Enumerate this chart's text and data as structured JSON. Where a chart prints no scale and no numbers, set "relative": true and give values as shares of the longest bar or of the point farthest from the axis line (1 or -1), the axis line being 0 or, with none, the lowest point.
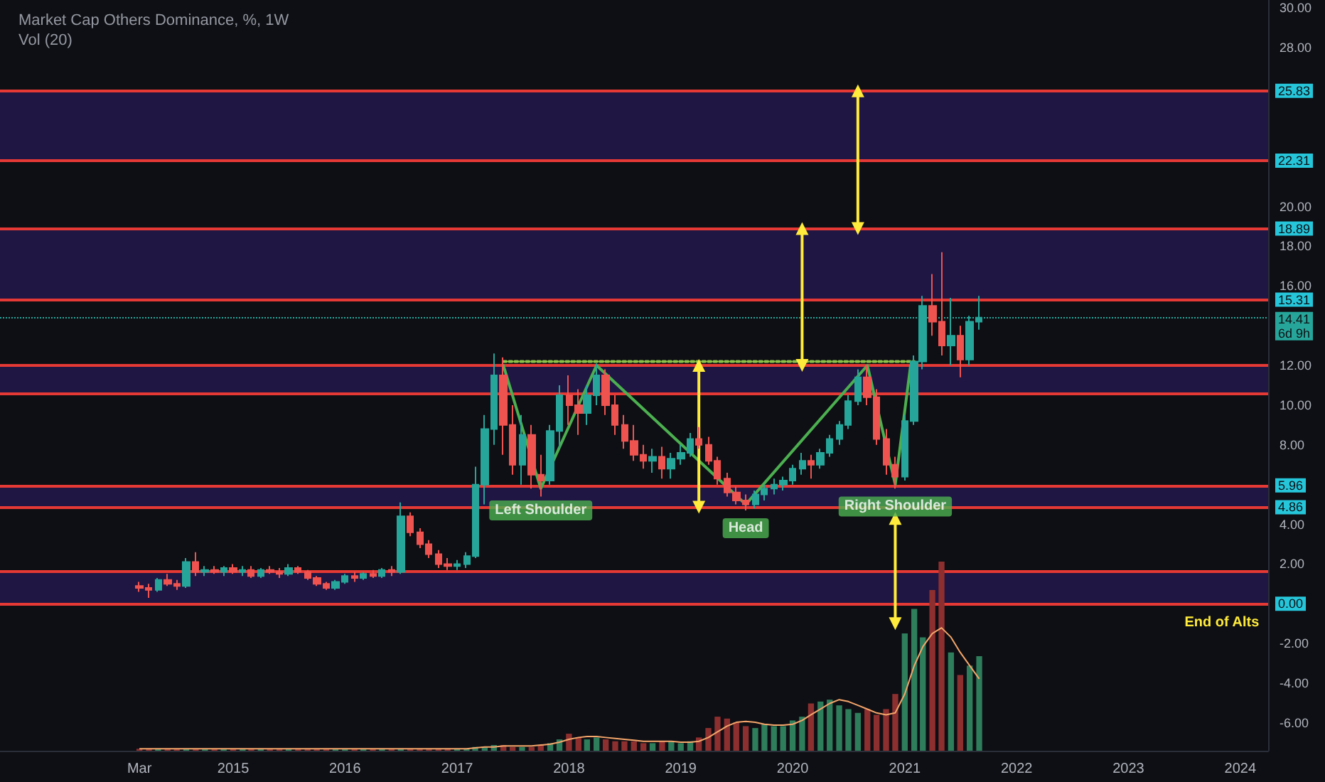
{
  "chart_data": [
    {
      "type": "candlestick",
      "title": "Market Cap Others Dominance, %, 1W",
      "x": [
        "2014-03",
        "2014-04",
        "2014-05",
        "2014-06",
        "2014-07",
        "2014-08",
        "2014-09",
        "2014-10",
        "2014-11",
        "2014-12",
        "2015-01",
        "2015-02",
        "2015-03",
        "2015-04",
        "2015-05",
        "2015-06",
        "2015-07",
        "2015-08",
        "2015-09",
        "2015-10",
        "2015-11",
        "2015-12",
        "2016-01",
        "2016-02",
        "2016-03",
        "2016-04",
        "2016-05",
        "2016-06",
        "2016-07",
        "2016-08",
        "2016-09",
        "2016-10",
        "2016-11",
        "2016-12",
        "2017-01",
        "2017-02",
        "2017-03",
        "2017-04",
        "2017-05",
        "2017-06",
        "2017-07",
        "2017-08",
        "2017-09",
        "2017-10",
        "2017-11",
        "2017-12",
        "2018-01",
        "2018-02",
        "2018-03",
        "2018-04",
        "2018-05",
        "2018-06",
        "2018-07",
        "2018-08",
        "2018-09",
        "2018-10",
        "2018-11",
        "2018-12",
        "2019-01",
        "2019-02",
        "2019-03",
        "2019-04",
        "2019-05",
        "2019-06",
        "2019-07",
        "2019-08",
        "2019-09",
        "2019-10",
        "2019-11",
        "2019-12",
        "2020-01",
        "2020-02",
        "2020-03",
        "2020-04",
        "2020-05",
        "2020-06",
        "2020-07",
        "2020-08",
        "2020-09",
        "2020-10",
        "2020-11",
        "2020-12",
        "2021-01",
        "2021-02",
        "2021-03",
        "2021-04",
        "2021-05",
        "2021-06",
        "2021-07",
        "2021-08",
        "2021-09"
      ],
      "ohlc": [
        [
          0.9,
          1.1,
          0.6,
          0.8
        ],
        [
          0.8,
          1.0,
          0.3,
          0.7
        ],
        [
          0.7,
          1.3,
          0.6,
          1.2
        ],
        [
          1.2,
          1.5,
          0.9,
          1.0
        ],
        [
          1.0,
          1.2,
          0.7,
          0.9
        ],
        [
          0.9,
          2.3,
          0.8,
          2.1
        ],
        [
          2.1,
          2.6,
          1.4,
          1.6
        ],
        [
          1.6,
          1.9,
          1.4,
          1.7
        ],
        [
          1.7,
          1.9,
          1.5,
          1.6
        ],
        [
          1.6,
          1.9,
          1.4,
          1.8
        ],
        [
          1.8,
          2.0,
          1.5,
          1.6
        ],
        [
          1.6,
          1.9,
          1.4,
          1.7
        ],
        [
          1.7,
          1.9,
          1.3,
          1.4
        ],
        [
          1.4,
          1.8,
          1.3,
          1.7
        ],
        [
          1.7,
          1.9,
          1.5,
          1.6
        ],
        [
          1.6,
          1.8,
          1.3,
          1.5
        ],
        [
          1.5,
          2.0,
          1.4,
          1.8
        ],
        [
          1.8,
          1.9,
          1.5,
          1.6
        ],
        [
          1.6,
          1.7,
          1.2,
          1.3
        ],
        [
          1.3,
          1.4,
          0.9,
          1.0
        ],
        [
          1.0,
          1.1,
          0.7,
          0.8
        ],
        [
          0.8,
          1.2,
          0.7,
          1.1
        ],
        [
          1.1,
          1.5,
          1.0,
          1.4
        ],
        [
          1.4,
          1.6,
          1.1,
          1.3
        ],
        [
          1.3,
          1.6,
          1.2,
          1.5
        ],
        [
          1.5,
          1.7,
          1.3,
          1.4
        ],
        [
          1.4,
          1.8,
          1.3,
          1.7
        ],
        [
          1.7,
          1.9,
          1.4,
          1.6
        ],
        [
          1.6,
          5.1,
          1.5,
          4.4
        ],
        [
          4.4,
          4.6,
          3.4,
          3.6
        ],
        [
          3.6,
          3.8,
          2.8,
          3.0
        ],
        [
          3.0,
          3.2,
          2.3,
          2.5
        ],
        [
          2.5,
          2.7,
          1.8,
          2.0
        ],
        [
          2.0,
          2.3,
          1.7,
          1.9
        ],
        [
          1.9,
          2.2,
          1.7,
          2.0
        ],
        [
          2.0,
          2.6,
          1.8,
          2.4
        ],
        [
          2.4,
          6.9,
          2.3,
          6.0
        ],
        [
          6.0,
          9.5,
          5.0,
          8.8
        ],
        [
          8.8,
          12.6,
          8.0,
          11.5
        ],
        [
          11.5,
          12.4,
          7.5,
          9.0
        ],
        [
          9.0,
          10.0,
          6.5,
          7.0
        ],
        [
          7.0,
          9.5,
          6.0,
          8.5
        ],
        [
          8.5,
          9.0,
          5.8,
          6.5
        ],
        [
          6.5,
          7.5,
          5.4,
          6.2
        ],
        [
          6.2,
          9.0,
          6.0,
          8.7
        ],
        [
          8.7,
          11.0,
          7.8,
          10.5
        ],
        [
          10.5,
          11.5,
          9.0,
          10.0
        ],
        [
          10.0,
          10.8,
          8.5,
          9.6
        ],
        [
          9.6,
          11.0,
          9.0,
          10.5
        ],
        [
          10.5,
          12.1,
          10.0,
          11.5
        ],
        [
          11.5,
          11.8,
          9.5,
          10.0
        ],
        [
          10.0,
          10.5,
          8.5,
          9.0
        ],
        [
          9.0,
          9.5,
          7.8,
          8.2
        ],
        [
          8.2,
          9.0,
          7.2,
          7.5
        ],
        [
          7.5,
          8.0,
          6.8,
          7.2
        ],
        [
          7.2,
          7.8,
          6.6,
          7.4
        ],
        [
          7.4,
          7.9,
          6.3,
          6.8
        ],
        [
          6.8,
          7.6,
          6.3,
          7.3
        ],
        [
          7.3,
          8.0,
          7.0,
          7.6
        ],
        [
          7.6,
          8.6,
          7.4,
          8.3
        ],
        [
          8.3,
          8.9,
          7.8,
          8.0
        ],
        [
          8.0,
          8.4,
          7.0,
          7.2
        ],
        [
          7.2,
          7.4,
          6.0,
          6.3
        ],
        [
          6.3,
          6.6,
          5.4,
          5.6
        ],
        [
          5.6,
          5.9,
          5.0,
          5.2
        ],
        [
          5.2,
          5.5,
          4.7,
          5.0
        ],
        [
          5.0,
          5.7,
          4.8,
          5.5
        ],
        [
          5.5,
          6.0,
          5.2,
          5.8
        ],
        [
          5.8,
          6.3,
          5.5,
          6.0
        ],
        [
          6.0,
          6.4,
          5.7,
          6.2
        ],
        [
          6.2,
          7.0,
          6.0,
          6.8
        ],
        [
          6.8,
          7.6,
          6.5,
          7.2
        ],
        [
          7.2,
          7.5,
          6.3,
          7.0
        ],
        [
          7.0,
          7.8,
          6.8,
          7.6
        ],
        [
          7.6,
          8.5,
          7.4,
          8.3
        ],
        [
          8.3,
          9.2,
          8.0,
          9.0
        ],
        [
          9.0,
          10.5,
          8.8,
          10.2
        ],
        [
          10.2,
          11.8,
          10.0,
          11.4
        ],
        [
          11.4,
          12.0,
          10.0,
          10.4
        ],
        [
          10.4,
          10.8,
          8.0,
          8.3
        ],
        [
          8.3,
          8.8,
          6.5,
          7.0
        ],
        [
          7.0,
          7.4,
          5.8,
          6.4
        ],
        [
          6.4,
          9.5,
          6.2,
          9.2
        ],
        [
          9.2,
          12.5,
          9.0,
          12.2
        ],
        [
          12.2,
          15.5,
          11.8,
          15.0
        ],
        [
          15.0,
          16.6,
          13.5,
          14.2
        ],
        [
          14.2,
          17.7,
          12.5,
          13.0
        ],
        [
          13.0,
          15.4,
          12.0,
          13.5
        ],
        [
          13.5,
          14.0,
          11.4,
          12.3
        ],
        [
          12.3,
          14.5,
          12.0,
          14.2
        ],
        [
          14.2,
          15.5,
          13.8,
          14.41
        ]
      ],
      "series": [
        {
          "type": "line",
          "color": "#4caf50",
          "marker": "none",
          "line_style": "solid",
          "x": [
            "2017-06",
            "2017-10",
            "2018-04",
            "2019-08",
            "2020-09",
            "2020-12",
            "2021-01-20"
          ],
          "values": [
            12.0,
            5.8,
            12.0,
            5.0,
            12.0,
            6.0,
            12.0
          ]
        },
        {
          "type": "line",
          "color": "#8bc34a",
          "marker": "none",
          "line_style": "dotted",
          "x": [
            "2017-06",
            "2021-02"
          ],
          "values": [
            12.2,
            12.2
          ]
        },
        {
          "type": "line",
          "color": "#ffeb3b",
          "marker": "triangle",
          "line_style": "solid",
          "x": [
            "2019-03",
            "2019-03"
          ],
          "values": [
            4.86,
            12.0
          ]
        },
        {
          "type": "line",
          "color": "#ffeb3b",
          "marker": "triangle",
          "line_style": "solid",
          "x": [
            "2020-02",
            "2020-02"
          ],
          "values": [
            12.0,
            18.89
          ]
        },
        {
          "type": "line",
          "color": "#ffeb3b",
          "marker": "triangle",
          "line_style": "solid",
          "x": [
            "2020-08",
            "2020-08"
          ],
          "values": [
            18.89,
            25.83
          ]
        },
        {
          "type": "line",
          "color": "#ffeb3b",
          "marker": "triangle",
          "line_style": "solid",
          "x": [
            "2020-12",
            "2020-12"
          ],
          "values": [
            4.3,
            -1.0
          ]
        }
      ],
      "ref_lines": [
        {
          "axis": "y",
          "value": 25.83,
          "label": "25.83",
          "color": "#e53935"
        },
        {
          "axis": "y",
          "value": 22.31,
          "label": "22.31",
          "color": "#e53935"
        },
        {
          "axis": "y",
          "value": 18.89,
          "label": "18.89",
          "color": "#e53935"
        },
        {
          "axis": "y",
          "value": 15.31,
          "label": "15.31",
          "color": "#e53935"
        },
        {
          "axis": "y",
          "value": 14.41,
          "label": "14.41\n6d 9h",
          "color": "#26a69a",
          "line_style": "dotted"
        },
        {
          "axis": "y",
          "value": 12.0,
          "label": null,
          "color": "#e53935"
        },
        {
          "axis": "y",
          "value": 10.57,
          "label": null,
          "color": "#e53935"
        },
        {
          "axis": "y",
          "value": 5.96,
          "label": "5.96",
          "color": "#e53935"
        },
        {
          "axis": "y",
          "value": 4.86,
          "label": "4.86",
          "color": "#e53935"
        },
        {
          "axis": "y",
          "value": 1.64,
          "label": null,
          "color": "#e53935"
        },
        {
          "axis": "y",
          "value": 0.0,
          "label": "0.00",
          "color": "#e53935"
        }
      ],
      "bands": [
        {
          "axis": "y",
          "from": 22.31,
          "to": 25.83,
          "color": "#24184f"
        },
        {
          "axis": "y",
          "from": 15.31,
          "to": 18.89,
          "color": "#24184f"
        },
        {
          "axis": "y",
          "from": 10.57,
          "to": 12.0,
          "color": "#24184f"
        },
        {
          "axis": "y",
          "from": 4.86,
          "to": 5.96,
          "color": "#24184f"
        },
        {
          "axis": "y",
          "from": 0.0,
          "to": 1.64,
          "color": "#24184f"
        }
      ],
      "annotations": [
        {
          "text": "Left Shoulder",
          "x": "2017-10",
          "y": 4.7
        },
        {
          "text": "Head",
          "x": "2019-08",
          "y": 3.8
        },
        {
          "text": "Right Shoulder",
          "x": "2020-12",
          "y": 4.9
        },
        "End of Alts"
      ],
      "xlim": [
        "2012-12",
        "2024-04"
      ],
      "xticks": [
        {
          "value": "2014-03",
          "label": "Mar"
        },
        "2015",
        "2016",
        "2017",
        "2018",
        "2019",
        "2020",
        "2021",
        "2022",
        "2023",
        "2024"
      ],
      "ylim": [
        -7.4,
        30.4
      ],
      "yticks": [
        {
          "value": -6,
          "label": "-6.00"
        },
        {
          "value": -4,
          "label": "-4.00"
        },
        {
          "value": -2,
          "label": "-2.00"
        },
        {
          "value": 2,
          "label": "2.00"
        },
        {
          "value": 4,
          "label": "4.00"
        },
        {
          "value": 8,
          "label": "8.00"
        },
        {
          "value": 10,
          "label": "10.00"
        },
        {
          "value": 12,
          "label": "12.00"
        },
        {
          "value": 16,
          "label": "16.00"
        },
        {
          "value": 18,
          "label": "18.00"
        },
        {
          "value": 20,
          "label": "20.00"
        },
        {
          "value": 28,
          "label": "28.00"
        },
        {
          "value": 30,
          "label": "30.00"
        }
      ]
    },
    {
      "type": "bar",
      "title": "Vol (20)",
      "relative": true,
      "tick_labels": false,
      "xlim": [
        "2012-12",
        "2024-04"
      ],
      "x": [
        "2014-03",
        "2014-04",
        "2014-05",
        "2014-06",
        "2014-07",
        "2014-08",
        "2014-09",
        "2014-10",
        "2014-11",
        "2014-12",
        "2015-01",
        "2015-02",
        "2015-03",
        "2015-04",
        "2015-05",
        "2015-06",
        "2015-07",
        "2015-08",
        "2015-09",
        "2015-10",
        "2015-11",
        "2015-12",
        "2016-01",
        "2016-02",
        "2016-03",
        "2016-04",
        "2016-05",
        "2016-06",
        "2016-07",
        "2016-08",
        "2016-09",
        "2016-10",
        "2016-11",
        "2016-12",
        "2017-01",
        "2017-02",
        "2017-03",
        "2017-04",
        "2017-05",
        "2017-06",
        "2017-07",
        "2017-08",
        "2017-09",
        "2017-10",
        "2017-11",
        "2017-12",
        "2018-01",
        "2018-02",
        "2018-03",
        "2018-04",
        "2018-05",
        "2018-06",
        "2018-07",
        "2018-08",
        "2018-09",
        "2018-10",
        "2018-11",
        "2018-12",
        "2019-01",
        "2019-02",
        "2019-03",
        "2019-04",
        "2019-05",
        "2019-06",
        "2019-07",
        "2019-08",
        "2019-09",
        "2019-10",
        "2019-11",
        "2019-12",
        "2020-01",
        "2020-02",
        "2020-03",
        "2020-04",
        "2020-05",
        "2020-06",
        "2020-07",
        "2020-08",
        "2020-09",
        "2020-10",
        "2020-11",
        "2020-12",
        "2021-01",
        "2021-02",
        "2021-03",
        "2021-04",
        "2021-05",
        "2021-06",
        "2021-07",
        "2021-08",
        "2021-09"
      ],
      "series": [
        {
          "type": "bar",
          "values": [
            0.01,
            0.01,
            0.01,
            0.01,
            0.01,
            0.01,
            0.01,
            0.01,
            0.01,
            0.01,
            0.01,
            0.01,
            0.01,
            0.01,
            0.01,
            0.01,
            0.01,
            0.01,
            0.01,
            0.01,
            0.01,
            0.01,
            0.01,
            0.01,
            0.01,
            0.01,
            0.01,
            0.01,
            0.01,
            0.01,
            0.01,
            0.01,
            0.01,
            0.01,
            0.01,
            0.01,
            0.02,
            0.02,
            0.03,
            0.03,
            0.02,
            0.02,
            0.02,
            0.03,
            0.04,
            0.06,
            0.09,
            0.07,
            0.06,
            0.07,
            0.06,
            0.05,
            0.05,
            0.05,
            0.04,
            0.04,
            0.05,
            0.05,
            0.04,
            0.05,
            0.07,
            0.12,
            0.18,
            0.17,
            0.15,
            0.13,
            0.12,
            0.14,
            0.13,
            0.13,
            0.16,
            0.18,
            0.25,
            0.26,
            0.27,
            0.24,
            0.22,
            0.2,
            0.22,
            0.19,
            0.22,
            0.3,
            0.62,
            0.75,
            0.6,
            0.85,
            1.0,
            0.52,
            0.4,
            0.45,
            0.5
          ],
          "colors": [
            "#8e2f2f",
            "#8e2f2f",
            "#2e7d5b",
            "#8e2f2f",
            "#8e2f2f",
            "#2e7d5b",
            "#8e2f2f",
            "#2e7d5b",
            "#8e2f2f",
            "#2e7d5b",
            "#8e2f2f",
            "#2e7d5b",
            "#8e2f2f",
            "#2e7d5b",
            "#8e2f2f",
            "#8e2f2f",
            "#2e7d5b",
            "#8e2f2f",
            "#8e2f2f",
            "#8e2f2f",
            "#8e2f2f",
            "#2e7d5b",
            "#2e7d5b",
            "#8e2f2f",
            "#2e7d5b",
            "#8e2f2f",
            "#2e7d5b",
            "#8e2f2f",
            "#2e7d5b",
            "#8e2f2f",
            "#8e2f2f",
            "#8e2f2f",
            "#8e2f2f",
            "#8e2f2f",
            "#2e7d5b",
            "#2e7d5b",
            "#2e7d5b",
            "#2e7d5b",
            "#2e7d5b",
            "#8e2f2f",
            "#8e2f2f",
            "#2e7d5b",
            "#8e2f2f",
            "#8e2f2f",
            "#2e7d5b",
            "#2e7d5b",
            "#8e2f2f",
            "#8e2f2f",
            "#2e7d5b",
            "#2e7d5b",
            "#8e2f2f",
            "#8e2f2f",
            "#8e2f2f",
            "#8e2f2f",
            "#8e2f2f",
            "#2e7d5b",
            "#8e2f2f",
            "#2e7d5b",
            "#2e7d5b",
            "#2e7d5b",
            "#8e2f2f",
            "#8e2f2f",
            "#8e2f2f",
            "#8e2f2f",
            "#8e2f2f",
            "#8e2f2f",
            "#2e7d5b",
            "#2e7d5b",
            "#2e7d5b",
            "#2e7d5b",
            "#2e7d5b",
            "#2e7d5b",
            "#8e2f2f",
            "#2e7d5b",
            "#2e7d5b",
            "#2e7d5b",
            "#2e7d5b",
            "#2e7d5b",
            "#8e2f2f",
            "#8e2f2f",
            "#8e2f2f",
            "#8e2f2f",
            "#2e7d5b",
            "#2e7d5b",
            "#2e7d5b",
            "#8e2f2f",
            "#8e2f2f",
            "#2e7d5b",
            "#8e2f2f",
            "#2e7d5b",
            "#2e7d5b"
          ]
        },
        {
          "type": "line",
          "color": "#f5a66b",
          "values": [
            0.01,
            0.01,
            0.01,
            0.01,
            0.01,
            0.01,
            0.01,
            0.01,
            0.01,
            0.01,
            0.01,
            0.01,
            0.01,
            0.01,
            0.01,
            0.01,
            0.01,
            0.01,
            0.01,
            0.01,
            0.01,
            0.01,
            0.01,
            0.01,
            0.01,
            0.01,
            0.01,
            0.01,
            0.01,
            0.01,
            0.01,
            0.01,
            0.01,
            0.01,
            0.01,
            0.01,
            0.015,
            0.02,
            0.02,
            0.025,
            0.025,
            0.025,
            0.025,
            0.03,
            0.035,
            0.045,
            0.06,
            0.07,
            0.075,
            0.075,
            0.07,
            0.065,
            0.06,
            0.055,
            0.05,
            0.05,
            0.05,
            0.05,
            0.045,
            0.045,
            0.05,
            0.07,
            0.1,
            0.13,
            0.15,
            0.155,
            0.15,
            0.14,
            0.135,
            0.135,
            0.14,
            0.16,
            0.19,
            0.22,
            0.25,
            0.27,
            0.26,
            0.24,
            0.22,
            0.2,
            0.19,
            0.2,
            0.3,
            0.45,
            0.55,
            0.62,
            0.65,
            0.6,
            0.52,
            0.45,
            0.38
          ]
        }
      ]
    }
  ]
}
